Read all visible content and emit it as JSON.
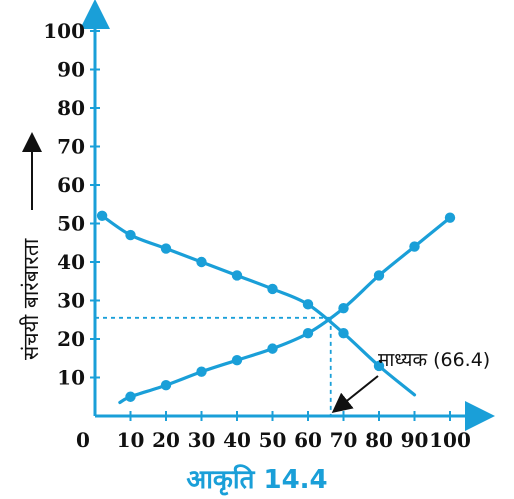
{
  "chart_data": {
    "type": "line",
    "ylabel": "संचयी बारंबारता",
    "xlim": [
      0,
      100
    ],
    "ylim": [
      0,
      100
    ],
    "x_ticks": [
      "0",
      "10",
      "20",
      "30",
      "40",
      "50",
      "60",
      "70",
      "80",
      "90",
      "100"
    ],
    "y_ticks": [
      "10",
      "20",
      "30",
      "40",
      "50",
      "60",
      "70",
      "80",
      "90",
      "100"
    ],
    "series": [
      {
        "values": [
          {
            "x": 10,
            "y": 5
          },
          {
            "x": 20,
            "y": 8
          },
          {
            "x": 30,
            "y": 11.5
          },
          {
            "x": 40,
            "y": 14.5
          },
          {
            "x": 50,
            "y": 17.5
          },
          {
            "x": 60,
            "y": 21.5
          },
          {
            "x": 70,
            "y": 28
          },
          {
            "x": 80,
            "y": 36.5
          },
          {
            "x": 90,
            "y": 44
          },
          {
            "x": 100,
            "y": 51.5
          }
        ]
      },
      {
        "values": [
          {
            "x": 2,
            "y": 52
          },
          {
            "x": 10,
            "y": 47
          },
          {
            "x": 20,
            "y": 43.5
          },
          {
            "x": 30,
            "y": 40
          },
          {
            "x": 40,
            "y": 36.5
          },
          {
            "x": 50,
            "y": 33
          },
          {
            "x": 60,
            "y": 29
          },
          {
            "x": 70,
            "y": 21.5
          },
          {
            "x": 80,
            "y": 13
          }
        ]
      }
    ],
    "intersection": {
      "x": 66.4,
      "y": 25.5
    },
    "annotation": "माध्यक (66.4)",
    "caption": "आकृति 14.4",
    "line_color": "#1a9fd8",
    "grid": false
  }
}
